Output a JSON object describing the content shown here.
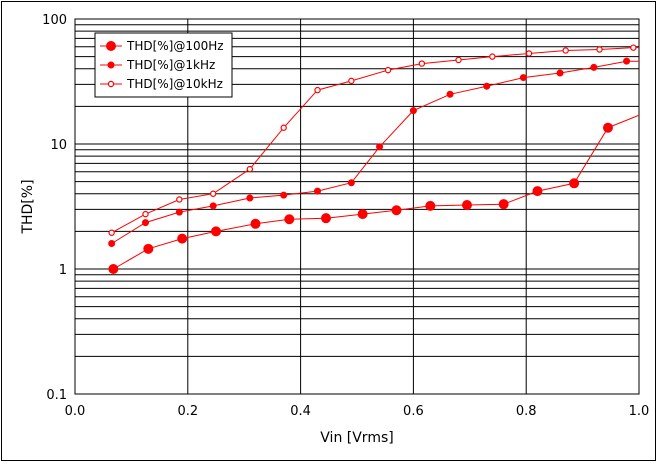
{
  "chart_data": {
    "type": "line",
    "xlabel": "Vin  [Vrms]",
    "ylabel": "THD[%]",
    "xlim": [
      0,
      1.0
    ],
    "ylim": [
      0.1,
      100
    ],
    "yscale": "log",
    "grid": true,
    "legend_position": "top-left",
    "x_ticks": [
      "0.0",
      "0.2",
      "0.4",
      "0.6",
      "0.8",
      "1.0"
    ],
    "y_ticks": [
      "0.1",
      "1",
      "10",
      "100"
    ],
    "series": [
      {
        "name": "THD[%]@100Hz",
        "color": "#ff0000",
        "marker": "filled-large",
        "x": [
          0.068,
          0.13,
          0.19,
          0.25,
          0.32,
          0.38,
          0.445,
          0.51,
          0.57,
          0.63,
          0.695,
          0.76,
          0.82,
          0.885,
          0.945,
          1.0
        ],
        "y": [
          1.0,
          1.45,
          1.75,
          2.0,
          2.3,
          2.5,
          2.55,
          2.75,
          2.95,
          3.2,
          3.25,
          3.3,
          4.2,
          4.85,
          13.5,
          17
        ]
      },
      {
        "name": "THD[%]@1kHz",
        "color": "#ff0000",
        "marker": "filled-small",
        "x": [
          0.065,
          0.125,
          0.185,
          0.245,
          0.31,
          0.37,
          0.43,
          0.49,
          0.54,
          0.6,
          0.665,
          0.73,
          0.795,
          0.86,
          0.92,
          0.978,
          1.0
        ],
        "y": [
          1.6,
          2.35,
          2.85,
          3.2,
          3.7,
          3.9,
          4.2,
          4.9,
          9.5,
          18.5,
          25,
          29,
          34,
          37,
          41,
          46,
          46
        ]
      },
      {
        "name": "THD[%]@10kHz",
        "color": "#ff0000",
        "marker": "hollow",
        "x": [
          0.065,
          0.125,
          0.185,
          0.245,
          0.31,
          0.37,
          0.43,
          0.49,
          0.555,
          0.615,
          0.68,
          0.74,
          0.805,
          0.87,
          0.93,
          0.99,
          1.0
        ],
        "y": [
          1.95,
          2.75,
          3.6,
          4.0,
          6.3,
          13.5,
          27,
          32,
          39,
          44,
          47,
          50,
          53,
          56,
          57,
          59,
          59
        ]
      }
    ]
  }
}
